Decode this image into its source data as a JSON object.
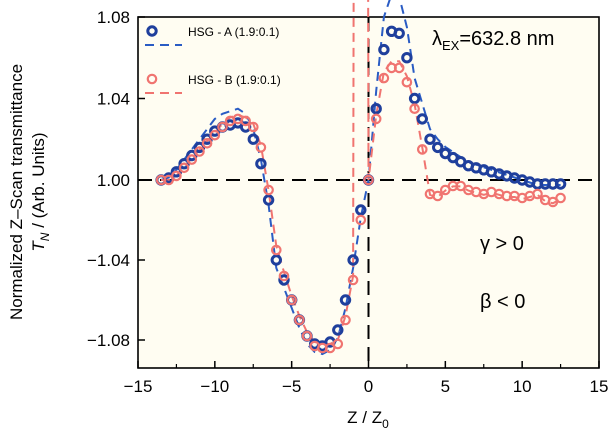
{
  "chart_data": {
    "type": "scatter",
    "xlabel": "Z / Z",
    "xlabel_sub": "0",
    "ylabel_line1": "Normalized Z–Scan transmittance",
    "ylabel_line2_italic": "T",
    "ylabel_line2_sub": "N",
    "ylabel_line2_rest": " / (Arb. Units)",
    "xlim": [
      -15,
      15
    ],
    "ylim": [
      -1.09,
      1.08
    ],
    "x_ticks": [
      -15,
      -10,
      -5,
      0,
      5,
      10,
      15
    ],
    "x_tick_labels": [
      "−15",
      "−10",
      "−5",
      "0",
      "5",
      "10",
      "15"
    ],
    "y_ticks": [
      1.08,
      1.04,
      1.0,
      -1.04,
      -1.08
    ],
    "y_tick_labels": [
      "1.08",
      "1.04",
      "1.00",
      "−1.04",
      "−1.08"
    ],
    "grid": false,
    "legend_position": "top-left",
    "reference_lines": {
      "horizontal": 1.0,
      "vertical": 0
    },
    "series": [
      {
        "name": "HSG - A (1.9:0.1)",
        "color": "#1f3f9c",
        "fit_color": "#2a5cc4",
        "x": [
          -13.5,
          -13.0,
          -12.5,
          -12.0,
          -11.5,
          -11.0,
          -10.5,
          -10.0,
          -9.5,
          -9.0,
          -8.5,
          -8.0,
          -7.5,
          -7.0,
          -6.5,
          -6.0,
          -5.5,
          -5.0,
          -4.5,
          -4.0,
          -3.5,
          -3.0,
          -2.5,
          -2.0,
          -1.5,
          -1.0,
          -0.5,
          0.0,
          0.5,
          1.0,
          1.5,
          2.0,
          2.5,
          3.0,
          3.5,
          4.0,
          4.5,
          5.0,
          5.5,
          6.0,
          6.5,
          7.0,
          7.5,
          8.0,
          8.5,
          9.0,
          9.5,
          10.0,
          10.5,
          11.0,
          11.5,
          12.0,
          12.5
        ],
        "y": [
          1.0,
          1.001,
          1.004,
          1.008,
          1.012,
          1.016,
          1.02,
          1.024,
          1.026,
          1.027,
          1.028,
          1.026,
          1.02,
          1.008,
          0.99,
          -1.04,
          -1.05,
          -1.06,
          -1.07,
          -1.078,
          -1.082,
          -1.083,
          -1.081,
          -1.075,
          -1.06,
          -1.04,
          0.985,
          1.0,
          1.035,
          1.064,
          1.073,
          1.072,
          1.06,
          1.04,
          1.03,
          1.02,
          1.016,
          1.013,
          1.011,
          1.009,
          1.007,
          1.006,
          1.005,
          1.004,
          1.003,
          1.002,
          1.001,
          1.0,
          0.999,
          0.998,
          0.998,
          0.998,
          0.998
        ]
      },
      {
        "name": "HSG - B (1.9:0.1)",
        "color": "#f07470",
        "fit_color": "#f07470",
        "x": [
          -13.5,
          -13.0,
          -12.5,
          -12.0,
          -11.5,
          -11.0,
          -10.5,
          -10.0,
          -9.5,
          -9.0,
          -8.5,
          -8.0,
          -7.5,
          -7.0,
          -6.5,
          -6.0,
          -5.5,
          -5.0,
          -4.5,
          -4.0,
          -3.5,
          -3.0,
          -2.5,
          -2.0,
          -1.5,
          -1.0,
          -0.5,
          0.0,
          0.5,
          1.0,
          1.5,
          2.0,
          2.5,
          3.0,
          3.5,
          4.0,
          4.5,
          5.0,
          5.5,
          6.0,
          6.5,
          7.0,
          7.5,
          8.0,
          8.5,
          9.0,
          9.5,
          10.0,
          10.5,
          11.0,
          11.5,
          12.0,
          12.5
        ],
        "y": [
          1.0,
          1.0,
          1.002,
          1.006,
          1.01,
          1.014,
          1.018,
          1.022,
          1.026,
          1.029,
          1.03,
          1.029,
          1.026,
          1.016,
          0.995,
          -1.035,
          -1.048,
          -1.06,
          -1.07,
          -1.078,
          -1.083,
          -1.084,
          -1.084,
          -1.082,
          -1.07,
          -1.05,
          0.98,
          1.0,
          1.03,
          1.05,
          1.055,
          1.055,
          1.048,
          1.035,
          1.015,
          0.993,
          0.992,
          0.995,
          0.997,
          0.997,
          0.995,
          0.994,
          0.993,
          0.994,
          0.993,
          0.992,
          0.992,
          0.991,
          0.992,
          0.993,
          0.99,
          0.989,
          0.991
        ]
      }
    ],
    "annotations": [
      {
        "text": "λ",
        "sub": "EX",
        "rest": "=632.8 nm"
      },
      {
        "text": "γ > 0"
      },
      {
        "text": "β < 0"
      }
    ]
  }
}
